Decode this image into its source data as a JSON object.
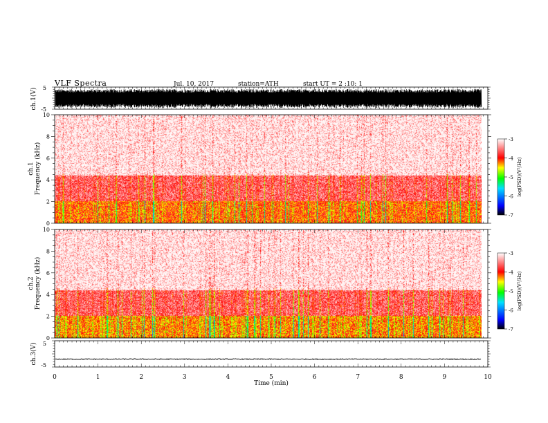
{
  "header": {
    "title": "VLF Spectra",
    "date": "Jul. 10, 2017",
    "station": "station=ATH",
    "start": "start UT = 2 :10: 1"
  },
  "colors": {
    "waveform": "#000000",
    "colormap": [
      "#000000",
      "#0000ff",
      "#00e0ff",
      "#00ff00",
      "#ffff00",
      "#ff0000",
      "#ffffff"
    ]
  },
  "chart_data": [
    {
      "type": "line",
      "panel": "ch1-waveform",
      "ylabel": "ch.1(V)",
      "ylim": [
        -5,
        5
      ],
      "y_ticks": [
        "5",
        "-5"
      ],
      "description_level": "dense oscillation filling roughly +4 V to -4 V over the whole record"
    },
    {
      "type": "heatmap",
      "panel": "ch1-spectrogram",
      "ylabel_line1": "ch.1",
      "ylabel_line2": "Frequency (kHz)",
      "ylim": [
        0,
        10
      ],
      "y_ticks": [
        "0",
        "2",
        "4",
        "6",
        "8",
        "10"
      ],
      "colorbar": {
        "label": "log(PSD)(V²/Hz)",
        "range": [
          -7,
          -3
        ],
        "ticks": [
          "-3",
          "-4",
          "-5",
          "-6",
          "-7"
        ]
      },
      "bands_kHz": [
        {
          "from": 0,
          "to": 2.1,
          "level": -4.1
        },
        {
          "from": 2.1,
          "to": 4.4,
          "level": -3.6
        },
        {
          "from": 4.4,
          "to": 10,
          "level": -3.2
        }
      ]
    },
    {
      "type": "heatmap",
      "panel": "ch2-spectrogram",
      "ylabel_line1": "ch.2",
      "ylabel_line2": "Frequency (kHz)",
      "ylim": [
        0,
        10
      ],
      "y_ticks": [
        "0",
        "2",
        "4",
        "6",
        "8",
        "10"
      ],
      "colorbar": {
        "label": "log(PSD)(V²/Hz)",
        "range": [
          -7,
          -3
        ],
        "ticks": [
          "-3",
          "-4",
          "-5",
          "-6",
          "-7"
        ]
      },
      "bands_kHz": [
        {
          "from": 0,
          "to": 2.1,
          "level": -4.2
        },
        {
          "from": 2.1,
          "to": 4.4,
          "level": -3.6
        },
        {
          "from": 4.4,
          "to": 10,
          "level": -3.2
        }
      ]
    },
    {
      "type": "line",
      "panel": "ch3-waveform",
      "ylabel": "ch.3(V)",
      "ylim": [
        -5,
        5
      ],
      "y_ticks": [
        "5",
        "-5"
      ],
      "description_level": "near-flat trace around -2 V"
    }
  ],
  "xaxis": {
    "label": "Time (min)",
    "range": [
      0,
      10
    ],
    "data_end": 9.85,
    "ticks": [
      "0",
      "1",
      "2",
      "3",
      "4",
      "5",
      "6",
      "7",
      "8",
      "9",
      "10"
    ]
  }
}
